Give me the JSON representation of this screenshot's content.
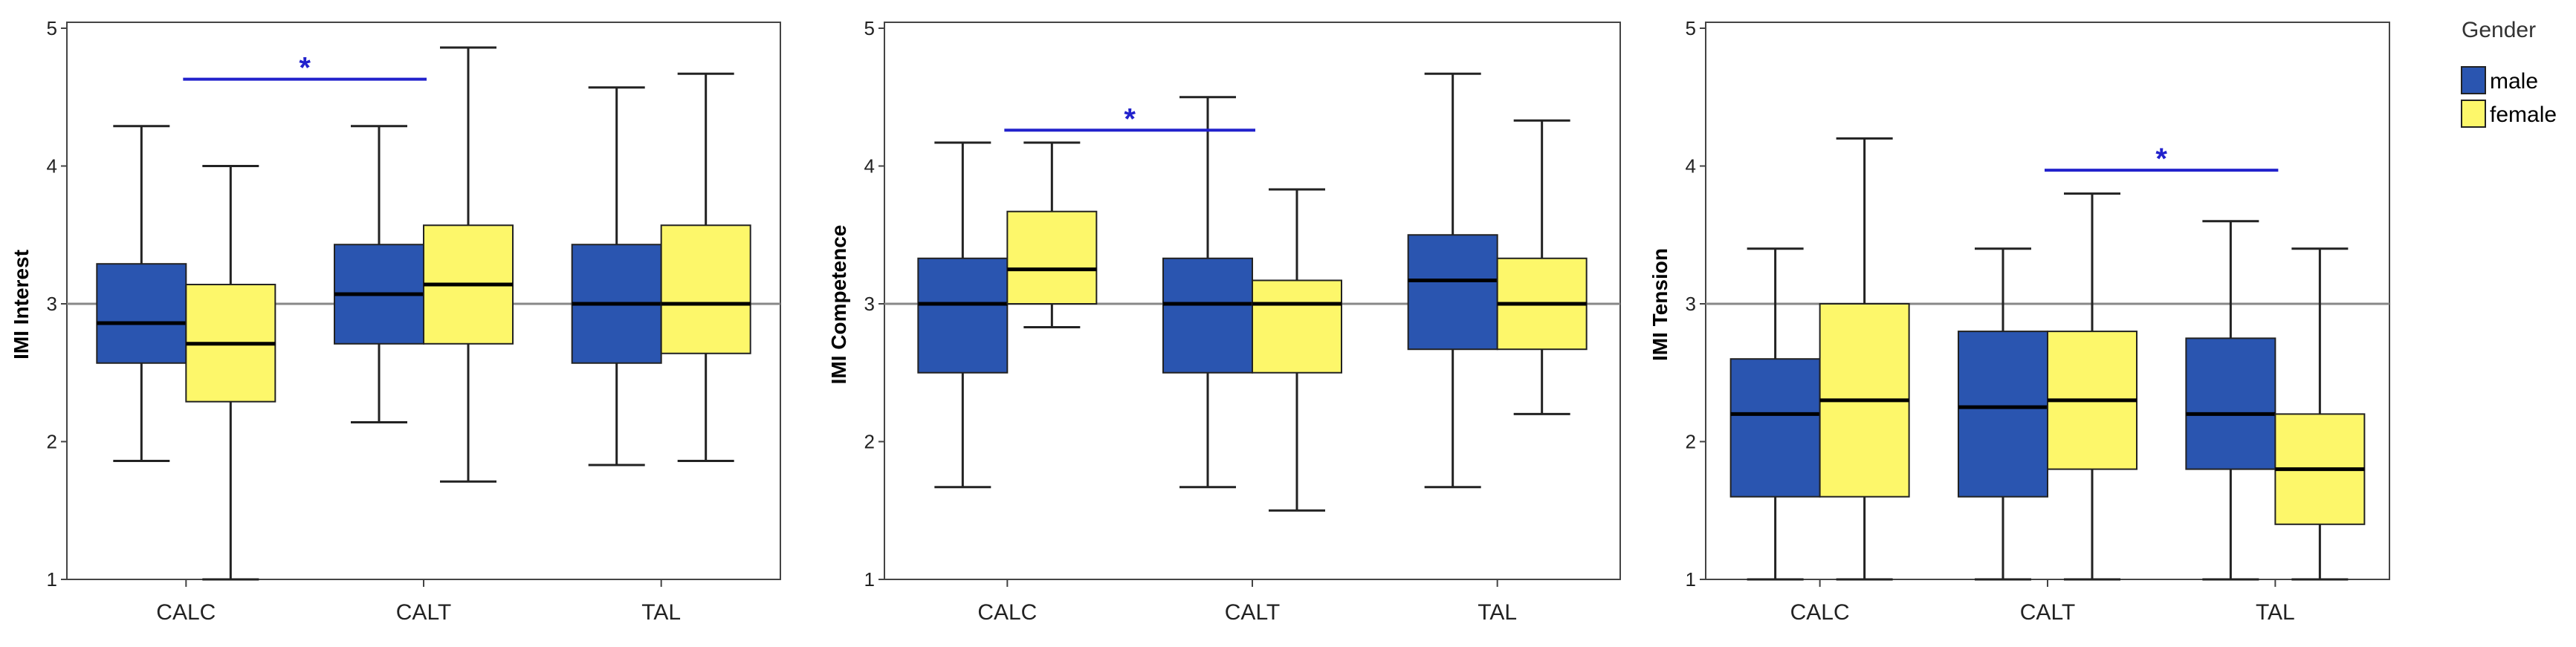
{
  "colors": {
    "male": "#2a55b0",
    "female": "#fdf76a",
    "box_stroke": "#222222",
    "median": "#000000",
    "reference_line": "#888888",
    "significance": "#2222cc",
    "axis": "#444444",
    "background": "#ffffff"
  },
  "legend": {
    "title": "Gender",
    "items": [
      {
        "label": "male",
        "color": "#2a55b0"
      },
      {
        "label": "female",
        "color": "#fdf76a"
      }
    ]
  },
  "chart_data": [
    {
      "type": "boxplot",
      "title": "",
      "xlabel": "",
      "ylabel": "IMI Interest",
      "ylim": [
        1,
        5
      ],
      "yticks": [
        "1",
        "2",
        "3",
        "4",
        "5"
      ],
      "categories": [
        "CALC",
        "CALT",
        "TAL"
      ],
      "reference_line": 3,
      "groups": [
        {
          "category": "CALC",
          "gender": "male",
          "min": 1.86,
          "q1": 2.57,
          "median": 2.86,
          "q3": 3.29,
          "max": 4.29
        },
        {
          "category": "CALC",
          "gender": "female",
          "min": 1.0,
          "q1": 2.29,
          "median": 2.71,
          "q3": 3.14,
          "max": 4.0
        },
        {
          "category": "CALT",
          "gender": "male",
          "min": 2.14,
          "q1": 2.71,
          "median": 3.07,
          "q3": 3.43,
          "max": 4.29
        },
        {
          "category": "CALT",
          "gender": "female",
          "min": 1.71,
          "q1": 2.71,
          "median": 3.14,
          "q3": 3.57,
          "max": 4.86
        },
        {
          "category": "TAL",
          "gender": "male",
          "min": 1.83,
          "q1": 2.57,
          "median": 3.0,
          "q3": 3.43,
          "max": 4.57
        },
        {
          "category": "TAL",
          "gender": "female",
          "min": 1.86,
          "q1": 2.64,
          "median": 3.0,
          "q3": 3.57,
          "max": 4.67
        }
      ],
      "significance": [
        {
          "from": "CALC",
          "to": "CALT",
          "label": "*",
          "y": 4.63
        }
      ]
    },
    {
      "type": "boxplot",
      "title": "",
      "xlabel": "",
      "ylabel": "IMI Competence",
      "ylim": [
        1,
        5
      ],
      "yticks": [
        "1",
        "2",
        "3",
        "4",
        "5"
      ],
      "categories": [
        "CALC",
        "CALT",
        "TAL"
      ],
      "reference_line": 3,
      "groups": [
        {
          "category": "CALC",
          "gender": "male",
          "min": 1.67,
          "q1": 2.5,
          "median": 3.0,
          "q3": 3.33,
          "max": 4.17
        },
        {
          "category": "CALC",
          "gender": "female",
          "min": 2.83,
          "q1": 3.0,
          "median": 3.25,
          "q3": 3.67,
          "max": 4.17
        },
        {
          "category": "CALT",
          "gender": "male",
          "min": 1.67,
          "q1": 2.5,
          "median": 3.0,
          "q3": 3.33,
          "max": 4.5
        },
        {
          "category": "CALT",
          "gender": "female",
          "min": 1.5,
          "q1": 2.5,
          "median": 3.0,
          "q3": 3.17,
          "max": 3.83
        },
        {
          "category": "TAL",
          "gender": "male",
          "min": 1.67,
          "q1": 2.67,
          "median": 3.17,
          "q3": 3.5,
          "max": 4.67
        },
        {
          "category": "TAL",
          "gender": "female",
          "min": 2.2,
          "q1": 2.67,
          "median": 3.0,
          "q3": 3.33,
          "max": 4.33
        }
      ],
      "significance": [
        {
          "from": "CALC",
          "to": "CALT",
          "label": "*",
          "y": 4.26
        }
      ]
    },
    {
      "type": "boxplot",
      "title": "",
      "xlabel": "",
      "ylabel": "IMI Tension",
      "ylim": [
        1,
        5
      ],
      "yticks": [
        "1",
        "2",
        "3",
        "4",
        "5"
      ],
      "categories": [
        "CALC",
        "CALT",
        "TAL"
      ],
      "reference_line": 3,
      "groups": [
        {
          "category": "CALC",
          "gender": "male",
          "min": 1.0,
          "q1": 1.6,
          "median": 2.2,
          "q3": 2.6,
          "max": 3.4
        },
        {
          "category": "CALC",
          "gender": "female",
          "min": 1.0,
          "q1": 1.6,
          "median": 2.3,
          "q3": 3.0,
          "max": 4.2
        },
        {
          "category": "CALT",
          "gender": "male",
          "min": 1.0,
          "q1": 1.6,
          "median": 2.25,
          "q3": 2.8,
          "max": 3.4
        },
        {
          "category": "CALT",
          "gender": "female",
          "min": 1.0,
          "q1": 1.8,
          "median": 2.3,
          "q3": 2.8,
          "max": 3.8
        },
        {
          "category": "TAL",
          "gender": "male",
          "min": 1.0,
          "q1": 1.8,
          "median": 2.2,
          "q3": 2.75,
          "max": 3.6
        },
        {
          "category": "TAL",
          "gender": "female",
          "min": 1.0,
          "q1": 1.4,
          "median": 1.8,
          "q3": 2.2,
          "max": 3.4
        }
      ],
      "significance": [
        {
          "from": "CALT",
          "to": "TAL",
          "label": "*",
          "y": 3.97
        }
      ]
    }
  ]
}
